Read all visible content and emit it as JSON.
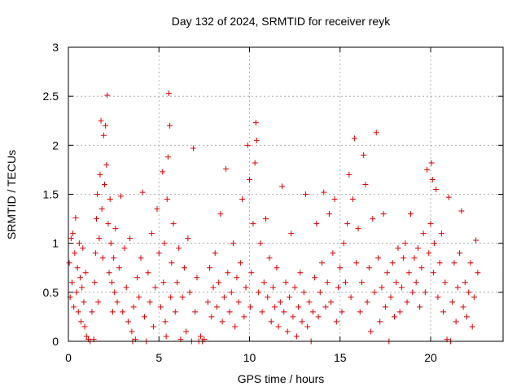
{
  "chart_data": {
    "type": "scatter",
    "title": "Day 132 of 2024, SRMTID for receiver reyk",
    "xlabel": "GPS time / hours",
    "ylabel": "SRMTID / TECUs",
    "xlim": [
      0,
      24
    ],
    "ylim": [
      0,
      3
    ],
    "xticks": [
      0,
      5,
      10,
      15,
      20
    ],
    "xtick_labels": [
      "0",
      "5",
      "10",
      "15",
      "20"
    ],
    "yticks": [
      0,
      0.5,
      1,
      1.5,
      2,
      2.5,
      3
    ],
    "ytick_labels": [
      "0",
      "0.5",
      "1",
      "1.5",
      "2",
      "2.5",
      "3"
    ],
    "grid": true,
    "marker": "+",
    "marker_color": "#e00000",
    "series": [
      {
        "name": "SRMTID",
        "points": [
          [
            0.05,
            0.8
          ],
          [
            0.1,
            0.45
          ],
          [
            0.15,
            1.05
          ],
          [
            0.2,
            0.6
          ],
          [
            0.25,
            1.1
          ],
          [
            0.3,
            0.35
          ],
          [
            0.35,
            0.9
          ],
          [
            0.4,
            1.26
          ],
          [
            0.45,
            0.5
          ],
          [
            0.5,
            0.75
          ],
          [
            0.55,
            0.3
          ],
          [
            0.6,
            1.0
          ],
          [
            0.65,
            0.65
          ],
          [
            0.7,
            0.2
          ],
          [
            0.75,
            0.55
          ],
          [
            0.8,
            0.95
          ],
          [
            0.85,
            0.4
          ],
          [
            0.9,
            0.15
          ],
          [
            0.95,
            0.7
          ],
          [
            1.0,
            0.05
          ],
          [
            1.1,
            0.02
          ],
          [
            1.2,
            0.0
          ],
          [
            1.3,
            0.3
          ],
          [
            1.4,
            0.02
          ],
          [
            1.45,
            0.6
          ],
          [
            1.5,
            0.9
          ],
          [
            1.55,
            1.25
          ],
          [
            1.6,
            1.5
          ],
          [
            1.65,
            0.4
          ],
          [
            1.7,
            1.05
          ],
          [
            1.75,
            1.7
          ],
          [
            1.8,
            2.25
          ],
          [
            1.85,
            1.35
          ],
          [
            1.9,
            0.85
          ],
          [
            1.95,
            2.1
          ],
          [
            2.0,
            1.6
          ],
          [
            2.05,
            2.2
          ],
          [
            2.1,
            1.8
          ],
          [
            2.15,
            2.51
          ],
          [
            2.2,
            1.2
          ],
          [
            2.25,
            0.7
          ],
          [
            2.3,
            1.45
          ],
          [
            2.35,
            1.0
          ],
          [
            2.4,
            0.6
          ],
          [
            2.45,
            0.3
          ],
          [
            2.5,
            0.85
          ],
          [
            2.55,
            0.5
          ],
          [
            2.6,
            1.15
          ],
          [
            2.7,
            0.4
          ],
          [
            2.8,
            0.75
          ],
          [
            2.9,
            1.48
          ],
          [
            3.0,
            0.3
          ],
          [
            3.1,
            0.95
          ],
          [
            3.2,
            0.55
          ],
          [
            3.3,
            0.2
          ],
          [
            3.4,
            1.05
          ],
          [
            3.5,
            0.1
          ],
          [
            3.55,
            0.0
          ],
          [
            3.6,
            0.35
          ],
          [
            3.7,
            0.02
          ],
          [
            3.8,
            0.65
          ],
          [
            3.9,
            0.45
          ],
          [
            4.0,
            0.85
          ],
          [
            4.1,
            1.52
          ],
          [
            4.2,
            0.25
          ],
          [
            4.3,
            0.0
          ],
          [
            4.4,
            0.7
          ],
          [
            4.5,
            0.4
          ],
          [
            4.6,
            1.1
          ],
          [
            4.7,
            0.15
          ],
          [
            4.8,
            0.55
          ],
          [
            4.9,
            1.35
          ],
          [
            5.0,
            0.9
          ],
          [
            5.1,
            0.35
          ],
          [
            5.2,
            1.73
          ],
          [
            5.25,
            0.6
          ],
          [
            5.3,
            1.0
          ],
          [
            5.35,
            0.2
          ],
          [
            5.4,
            0.05
          ],
          [
            5.45,
            1.45
          ],
          [
            5.5,
            1.88
          ],
          [
            5.55,
            2.53
          ],
          [
            5.6,
            2.2
          ],
          [
            5.65,
            0.45
          ],
          [
            5.7,
            0.8
          ],
          [
            5.8,
            1.2
          ],
          [
            5.9,
            0.3
          ],
          [
            6.0,
            0.6
          ],
          [
            6.1,
            0.95
          ],
          [
            6.2,
            0.02
          ],
          [
            6.3,
            0.45
          ],
          [
            6.4,
            0.75
          ],
          [
            6.5,
            0.1
          ],
          [
            6.6,
            1.05
          ],
          [
            6.7,
            0.5
          ],
          [
            6.8,
            0.0
          ],
          [
            6.9,
            1.97
          ],
          [
            7.0,
            0.3
          ],
          [
            7.1,
            0.65
          ],
          [
            7.2,
            0.0
          ],
          [
            7.3,
            0.05
          ],
          [
            7.4,
            0.0
          ],
          [
            7.5,
            0.02
          ],
          [
            7.7,
            0.4
          ],
          [
            7.8,
            0.75
          ],
          [
            7.9,
            0.25
          ],
          [
            8.0,
            0.55
          ],
          [
            8.1,
            0.9
          ],
          [
            8.2,
            0.35
          ],
          [
            8.3,
            0.6
          ],
          [
            8.4,
            1.3
          ],
          [
            8.5,
            0.2
          ],
          [
            8.6,
            0.45
          ],
          [
            8.7,
            1.76
          ],
          [
            8.8,
            0.7
          ],
          [
            8.9,
            0.3
          ],
          [
            9.0,
            0.5
          ],
          [
            9.1,
            1.0
          ],
          [
            9.2,
            0.15
          ],
          [
            9.3,
            0.65
          ],
          [
            9.4,
            0.4
          ],
          [
            9.5,
            0.8
          ],
          [
            9.6,
            1.45
          ],
          [
            9.7,
            0.25
          ],
          [
            9.8,
            0.55
          ],
          [
            9.9,
            2.0
          ],
          [
            10.0,
            1.65
          ],
          [
            10.05,
            0.35
          ],
          [
            10.1,
            0.7
          ],
          [
            10.2,
            1.2
          ],
          [
            10.3,
            1.82
          ],
          [
            10.35,
            2.23
          ],
          [
            10.4,
            2.05
          ],
          [
            10.5,
            0.5
          ],
          [
            10.6,
            1.0
          ],
          [
            10.7,
            0.3
          ],
          [
            10.8,
            0.6
          ],
          [
            10.9,
            1.25
          ],
          [
            11.0,
            0.45
          ],
          [
            11.1,
            0.85
          ],
          [
            11.2,
            0.2
          ],
          [
            11.3,
            0.55
          ],
          [
            11.4,
            0.35
          ],
          [
            11.5,
            0.75
          ],
          [
            11.6,
            0.15
          ],
          [
            11.7,
            0.4
          ],
          [
            11.8,
            1.58
          ],
          [
            11.9,
            0.3
          ],
          [
            12.0,
            0.6
          ],
          [
            12.1,
            0.1
          ],
          [
            12.2,
            0.45
          ],
          [
            12.3,
            1.1
          ],
          [
            12.4,
            0.25
          ],
          [
            12.5,
            0.55
          ],
          [
            12.6,
            0.05
          ],
          [
            12.7,
            0.35
          ],
          [
            12.8,
            0.7
          ],
          [
            12.9,
            0.2
          ],
          [
            13.0,
            0.5
          ],
          [
            13.1,
            1.5
          ],
          [
            13.2,
            0.15
          ],
          [
            13.3,
            0.4
          ],
          [
            13.4,
            0.0
          ],
          [
            13.5,
            0.3
          ],
          [
            13.6,
            0.65
          ],
          [
            13.7,
            1.2
          ],
          [
            13.8,
            0.25
          ],
          [
            13.9,
            0.5
          ],
          [
            14.0,
            0.8
          ],
          [
            14.1,
            1.52
          ],
          [
            14.2,
            0.35
          ],
          [
            14.3,
            0.6
          ],
          [
            14.4,
            1.3
          ],
          [
            14.5,
            0.4
          ],
          [
            14.6,
            0.9
          ],
          [
            14.7,
            1.45
          ],
          [
            14.8,
            0.2
          ],
          [
            14.9,
            0.55
          ],
          [
            15.0,
            0.75
          ],
          [
            15.1,
            0.3
          ],
          [
            15.2,
            1.0
          ],
          [
            15.3,
            0.6
          ],
          [
            15.4,
            1.2
          ],
          [
            15.5,
            1.7
          ],
          [
            15.6,
            0.45
          ],
          [
            15.7,
            1.45
          ],
          [
            15.8,
            2.07
          ],
          [
            15.9,
            0.8
          ],
          [
            16.0,
            1.15
          ],
          [
            16.1,
            0.3
          ],
          [
            16.2,
            0.6
          ],
          [
            16.3,
            1.9
          ],
          [
            16.4,
            1.6
          ],
          [
            16.5,
            0.4
          ],
          [
            16.6,
            0.75
          ],
          [
            16.7,
            0.1
          ],
          [
            16.8,
            1.25
          ],
          [
            16.9,
            0.5
          ],
          [
            17.0,
            2.13
          ],
          [
            17.1,
            0.85
          ],
          [
            17.2,
            0.2
          ],
          [
            17.3,
            0.55
          ],
          [
            17.4,
            1.3
          ],
          [
            17.5,
            0.35
          ],
          [
            17.6,
            0.7
          ],
          [
            17.7,
            0.0
          ],
          [
            17.8,
            0.45
          ],
          [
            17.9,
            0.8
          ],
          [
            18.0,
            0.25
          ],
          [
            18.1,
            0.6
          ],
          [
            18.2,
            0.95
          ],
          [
            18.3,
            0.3
          ],
          [
            18.4,
            0.55
          ],
          [
            18.5,
            0.85
          ],
          [
            18.6,
            1.0
          ],
          [
            18.7,
            0.4
          ],
          [
            18.8,
            0.7
          ],
          [
            18.9,
            1.3
          ],
          [
            19.0,
            0.5
          ],
          [
            19.1,
            0.85
          ],
          [
            19.2,
            0.6
          ],
          [
            19.3,
            0.95
          ],
          [
            19.4,
            0.35
          ],
          [
            19.5,
            0.75
          ],
          [
            19.6,
            1.1
          ],
          [
            19.7,
            0.5
          ],
          [
            19.8,
            1.75
          ],
          [
            19.9,
            0.9
          ],
          [
            20.0,
            1.2
          ],
          [
            20.05,
            1.82
          ],
          [
            20.1,
            1.65
          ],
          [
            20.15,
            0.7
          ],
          [
            20.2,
            1.0
          ],
          [
            20.3,
            1.55
          ],
          [
            20.4,
            0.45
          ],
          [
            20.5,
            0.8
          ],
          [
            20.6,
            1.1
          ],
          [
            20.7,
            0.3
          ],
          [
            20.8,
            0.6
          ],
          [
            20.9,
            0.02
          ],
          [
            21.0,
            1.47
          ],
          [
            21.1,
            0.0
          ],
          [
            21.2,
            0.4
          ],
          [
            21.3,
            0.8
          ],
          [
            21.4,
            0.2
          ],
          [
            21.5,
            0.55
          ],
          [
            21.6,
            0.9
          ],
          [
            21.7,
            1.33
          ],
          [
            21.8,
            0.35
          ],
          [
            21.9,
            0.6
          ],
          [
            22.0,
            0.25
          ],
          [
            22.1,
            0.5
          ],
          [
            22.2,
            0.8
          ],
          [
            22.3,
            0.15
          ],
          [
            22.4,
            0.45
          ],
          [
            22.5,
            1.03
          ],
          [
            22.6,
            0.7
          ]
        ]
      }
    ]
  }
}
